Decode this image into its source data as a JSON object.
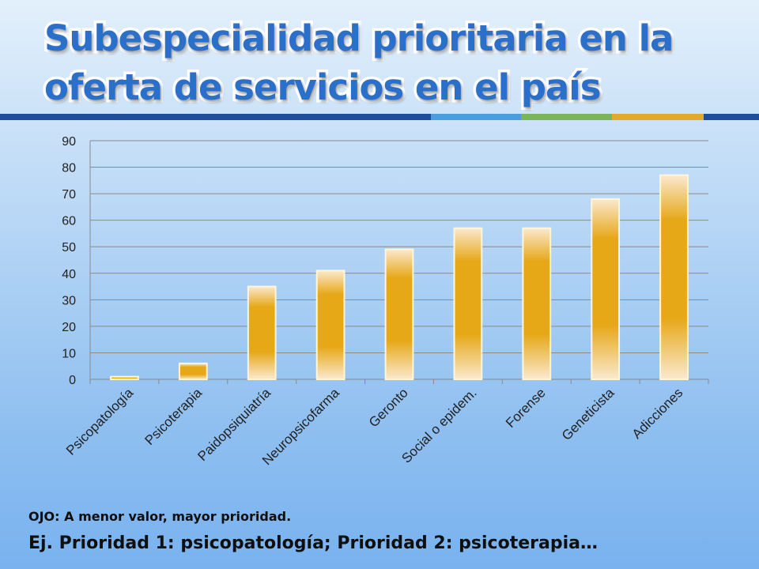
{
  "slide": {
    "title": "Subespecialidad prioritaria en la oferta de servicios en el país",
    "note": "OJO:  A menor valor, mayor prioridad.",
    "example": "Ej. Prioridad 1: psicopatología; Prioridad 2: psicoterapia…",
    "accent_colors": [
      "#1f4e9b",
      "#4a9ee0",
      "#7bb55a",
      "#e3a92a"
    ]
  },
  "chart_data": {
    "type": "bar",
    "categories": [
      "Psicopatología",
      "Psicoterapia",
      "Paidopsiquiatría",
      "Neuropsicofarma",
      "Geronto",
      "Social o epidem.",
      "Forense",
      "Geneticista",
      "Adicciones"
    ],
    "values": [
      1,
      6,
      35,
      41,
      49,
      57,
      57,
      68,
      77
    ],
    "ylim": [
      0,
      90
    ],
    "yticks": [
      0,
      10,
      20,
      30,
      40,
      50,
      60,
      70,
      80,
      90
    ],
    "gridlines": true,
    "legend": false,
    "bar_color": "#e6a817"
  }
}
